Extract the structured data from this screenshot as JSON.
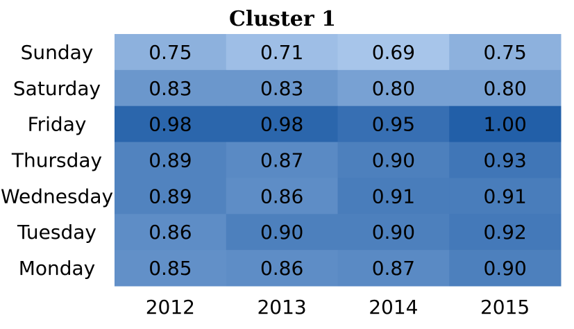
{
  "chart_data": {
    "type": "heatmap",
    "title": "Cluster 1",
    "x": [
      "2012",
      "2013",
      "2014",
      "2015"
    ],
    "y": [
      "Sunday",
      "Saturday",
      "Friday",
      "Thursday",
      "Wednesday",
      "Tuesday",
      "Monday"
    ],
    "values": [
      [
        0.75,
        0.71,
        0.69,
        0.75
      ],
      [
        0.83,
        0.83,
        0.8,
        0.8
      ],
      [
        0.98,
        0.98,
        0.95,
        1.0
      ],
      [
        0.89,
        0.87,
        0.9,
        0.93
      ],
      [
        0.89,
        0.86,
        0.91,
        0.91
      ],
      [
        0.86,
        0.9,
        0.9,
        0.92
      ],
      [
        0.85,
        0.86,
        0.87,
        0.9
      ]
    ],
    "value_labels": [
      [
        "0.75",
        "0.71",
        "0.69",
        "0.75"
      ],
      [
        "0.83",
        "0.83",
        "0.80",
        "0.80"
      ],
      [
        "0.98",
        "0.98",
        "0.95",
        "1.00"
      ],
      [
        "0.89",
        "0.87",
        "0.90",
        "0.93"
      ],
      [
        "0.89",
        "0.86",
        "0.91",
        "0.91"
      ],
      [
        "0.86",
        "0.90",
        "0.90",
        "0.92"
      ],
      [
        "0.85",
        "0.86",
        "0.87",
        "0.90"
      ]
    ],
    "color_low": "#a7c5ea",
    "color_high": "#225fa8",
    "grid": false,
    "legend": "none"
  }
}
